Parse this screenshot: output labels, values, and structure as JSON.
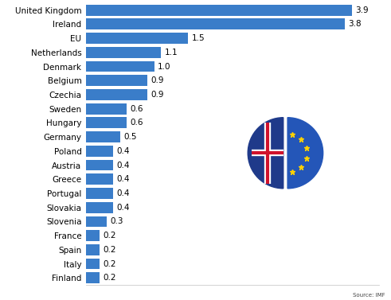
{
  "chart_data": {
    "type": "bar",
    "orientation": "horizontal",
    "categories": [
      "United Kingdom",
      "Ireland",
      "EU",
      "Netherlands",
      "Denmark",
      "Belgium",
      "Czechia",
      "Sweden",
      "Hungary",
      "Germany",
      "Poland",
      "Austria",
      "Greece",
      "Portugal",
      "Slovakia",
      "Slovenia",
      "France",
      "Spain",
      "Italy",
      "Finland"
    ],
    "values": [
      3.9,
      3.8,
      1.5,
      1.1,
      1.0,
      0.9,
      0.9,
      0.6,
      0.6,
      0.5,
      0.4,
      0.4,
      0.4,
      0.4,
      0.4,
      0.3,
      0.2,
      0.2,
      0.2,
      0.2
    ],
    "color": "#3a7dc9",
    "xlim": [
      0,
      4.3
    ],
    "data_labels": true,
    "tick_labels": "y",
    "grid": false,
    "source": "Source: IMF"
  }
}
